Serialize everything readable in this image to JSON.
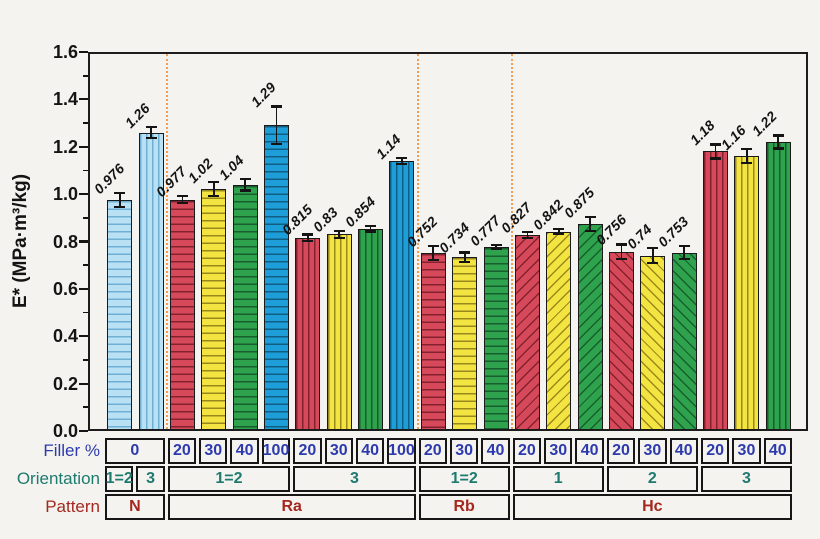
{
  "chart_data": {
    "type": "bar",
    "title": "",
    "ylabel": "E* (MPa·m³/kg)",
    "xlabel": "",
    "ylim": [
      0,
      1.6
    ],
    "ytick_labels": [
      "0.0",
      "0.2",
      "0.4",
      "0.6",
      "0.8",
      "1.0",
      "1.2",
      "1.4",
      "1.6"
    ],
    "ytick_step": 0.2,
    "minor_tick_step": 0.1,
    "grid": false,
    "legend_position": "none",
    "error_bars": true,
    "group_separators_after_bar": [
      2,
      10,
      13
    ],
    "bars": [
      {
        "label": "0.976",
        "value": 0.976,
        "err": 0.03,
        "color": "lightblue",
        "hatch": "horizontal",
        "filler": "0",
        "orientation": "1=2",
        "pattern": "N"
      },
      {
        "label": "1.26",
        "value": 1.26,
        "err": 0.025,
        "color": "lightblue",
        "hatch": "vertical",
        "filler": "0",
        "orientation": "3",
        "pattern": "N"
      },
      {
        "label": "0.977",
        "value": 0.977,
        "err": 0.015,
        "color": "red",
        "hatch": "horizontal",
        "filler": "20",
        "orientation": "1=2",
        "pattern": "Ra"
      },
      {
        "label": "1.02",
        "value": 1.02,
        "err": 0.03,
        "color": "yellow",
        "hatch": "horizontal",
        "filler": "30",
        "orientation": "1=2",
        "pattern": "Ra"
      },
      {
        "label": "1.04",
        "value": 1.04,
        "err": 0.025,
        "color": "green",
        "hatch": "horizontal",
        "filler": "40",
        "orientation": "1=2",
        "pattern": "Ra"
      },
      {
        "label": "1.29",
        "value": 1.29,
        "err": 0.08,
        "color": "blue",
        "hatch": "horizontal",
        "filler": "100",
        "orientation": "1=2",
        "pattern": "Ra"
      },
      {
        "label": "0.815",
        "value": 0.815,
        "err": 0.015,
        "color": "red",
        "hatch": "vertical",
        "filler": "20",
        "orientation": "3",
        "pattern": "Ra"
      },
      {
        "label": "0.83",
        "value": 0.83,
        "err": 0.015,
        "color": "yellow",
        "hatch": "vertical",
        "filler": "30",
        "orientation": "3",
        "pattern": "Ra"
      },
      {
        "label": "0.854",
        "value": 0.854,
        "err": 0.012,
        "color": "green",
        "hatch": "vertical",
        "filler": "40",
        "orientation": "3",
        "pattern": "Ra"
      },
      {
        "label": "1.14",
        "value": 1.14,
        "err": 0.012,
        "color": "blue",
        "hatch": "vertical",
        "filler": "100",
        "orientation": "3",
        "pattern": "Ra"
      },
      {
        "label": "0.752",
        "value": 0.752,
        "err": 0.03,
        "color": "red",
        "hatch": "horizontal",
        "filler": "20",
        "orientation": "1=2",
        "pattern": "Rb"
      },
      {
        "label": "0.734",
        "value": 0.734,
        "err": 0.02,
        "color": "yellow",
        "hatch": "horizontal",
        "filler": "30",
        "orientation": "1=2",
        "pattern": "Rb"
      },
      {
        "label": "0.777",
        "value": 0.777,
        "err": 0.008,
        "color": "green",
        "hatch": "horizontal",
        "filler": "40",
        "orientation": "1=2",
        "pattern": "Rb"
      },
      {
        "label": "0.827",
        "value": 0.827,
        "err": 0.012,
        "color": "red",
        "hatch": "diag-up",
        "filler": "20",
        "orientation": "1",
        "pattern": "Hc"
      },
      {
        "label": "0.842",
        "value": 0.842,
        "err": 0.012,
        "color": "yellow",
        "hatch": "diag-up",
        "filler": "30",
        "orientation": "1",
        "pattern": "Hc"
      },
      {
        "label": "0.875",
        "value": 0.875,
        "err": 0.03,
        "color": "green",
        "hatch": "diag-up",
        "filler": "40",
        "orientation": "1",
        "pattern": "Hc"
      },
      {
        "label": "0.756",
        "value": 0.756,
        "err": 0.032,
        "color": "red",
        "hatch": "diag-down",
        "filler": "20",
        "orientation": "2",
        "pattern": "Hc"
      },
      {
        "label": "0.74",
        "value": 0.74,
        "err": 0.032,
        "color": "yellow",
        "hatch": "diag-down",
        "filler": "30",
        "orientation": "2",
        "pattern": "Hc"
      },
      {
        "label": "0.753",
        "value": 0.753,
        "err": 0.028,
        "color": "green",
        "hatch": "diag-down",
        "filler": "40",
        "orientation": "2",
        "pattern": "Hc"
      },
      {
        "label": "1.18",
        "value": 1.18,
        "err": 0.03,
        "color": "red",
        "hatch": "vertical",
        "filler": "20",
        "orientation": "3",
        "pattern": "Hc"
      },
      {
        "label": "1.16",
        "value": 1.16,
        "err": 0.03,
        "color": "yellow",
        "hatch": "vertical",
        "filler": "30",
        "orientation": "3",
        "pattern": "Hc"
      },
      {
        "label": "1.22",
        "value": 1.22,
        "err": 0.028,
        "color": "green",
        "hatch": "vertical",
        "filler": "40",
        "orientation": "3",
        "pattern": "Hc"
      }
    ]
  },
  "category_table": {
    "rows": [
      {
        "id": "filler",
        "label": "Filler %",
        "color": "#2c3aad",
        "cells": [
          {
            "text": "0",
            "span": 2
          },
          {
            "text": "20",
            "span": 1
          },
          {
            "text": "30",
            "span": 1
          },
          {
            "text": "40",
            "span": 1
          },
          {
            "text": "100",
            "span": 1
          },
          {
            "text": "20",
            "span": 1
          },
          {
            "text": "30",
            "span": 1
          },
          {
            "text": "40",
            "span": 1
          },
          {
            "text": "100",
            "span": 1
          },
          {
            "text": "20",
            "span": 1
          },
          {
            "text": "30",
            "span": 1
          },
          {
            "text": "40",
            "span": 1
          },
          {
            "text": "20",
            "span": 1
          },
          {
            "text": "30",
            "span": 1
          },
          {
            "text": "40",
            "span": 1
          },
          {
            "text": "20",
            "span": 1
          },
          {
            "text": "30",
            "span": 1
          },
          {
            "text": "40",
            "span": 1
          },
          {
            "text": "20",
            "span": 1
          },
          {
            "text": "30",
            "span": 1
          },
          {
            "text": "40",
            "span": 1
          }
        ]
      },
      {
        "id": "orientation",
        "label": "Orientation",
        "color": "#1e7a6e",
        "cells": [
          {
            "text": "1=2",
            "span": 1
          },
          {
            "text": "3",
            "span": 1
          },
          {
            "text": "1=2",
            "span": 4
          },
          {
            "text": "3",
            "span": 4
          },
          {
            "text": "1=2",
            "span": 3
          },
          {
            "text": "1",
            "span": 3
          },
          {
            "text": "2",
            "span": 3
          },
          {
            "text": "3",
            "span": 3
          }
        ]
      },
      {
        "id": "pattern",
        "label": "Pattern",
        "color": "#a4281f",
        "cells": [
          {
            "text": "N",
            "span": 2
          },
          {
            "text": "Ra",
            "span": 8
          },
          {
            "text": "Rb",
            "span": 3
          },
          {
            "text": "Hc",
            "span": 9
          }
        ]
      }
    ]
  },
  "colors": {
    "background": "#f4f3ef",
    "frame": "#1c1c1c",
    "separator": "#f09e55",
    "bar_fill": {
      "lightblue": "#b9e0f3",
      "red": "#d6495b",
      "yellow": "#f3e442",
      "green": "#2ea24d",
      "blue": "#1e9ed8"
    },
    "bar_hatch_line": {
      "lightblue": "#6fafd4",
      "red": "#84212f",
      "yellow": "#99891c",
      "green": "#175f2c",
      "blue": "#105e84"
    }
  }
}
